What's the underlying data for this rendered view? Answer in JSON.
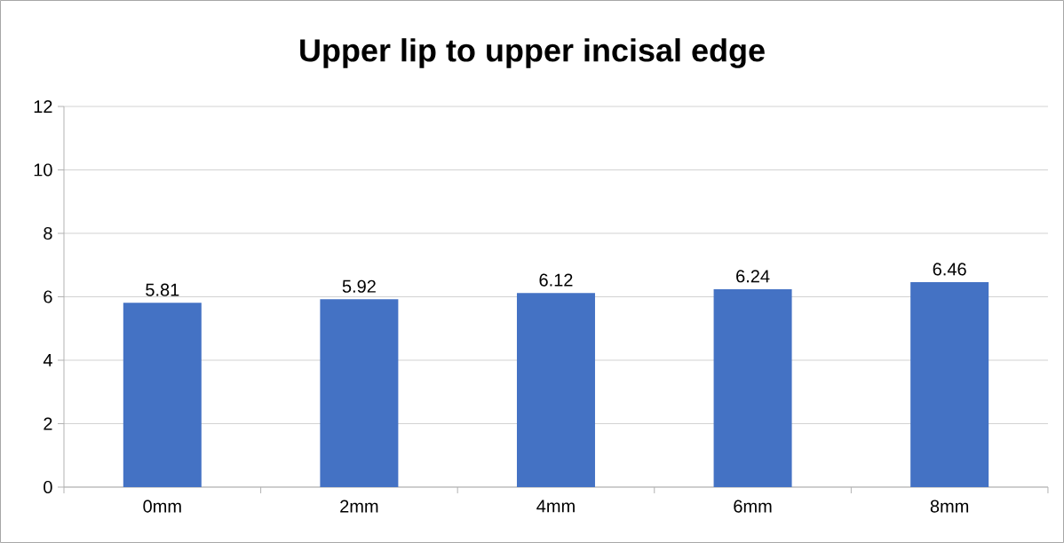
{
  "chart_data": {
    "type": "bar",
    "title": "Upper lip to upper incisal edge",
    "categories": [
      "0mm",
      "2mm",
      "4mm",
      "6mm",
      "8mm"
    ],
    "values": [
      5.81,
      5.92,
      6.12,
      6.24,
      6.46
    ],
    "color": "#4472c4",
    "ylim": [
      0,
      12
    ],
    "yticks": [
      0,
      2,
      4,
      6,
      8,
      10,
      12
    ],
    "grid": "y",
    "data_labels": true
  }
}
